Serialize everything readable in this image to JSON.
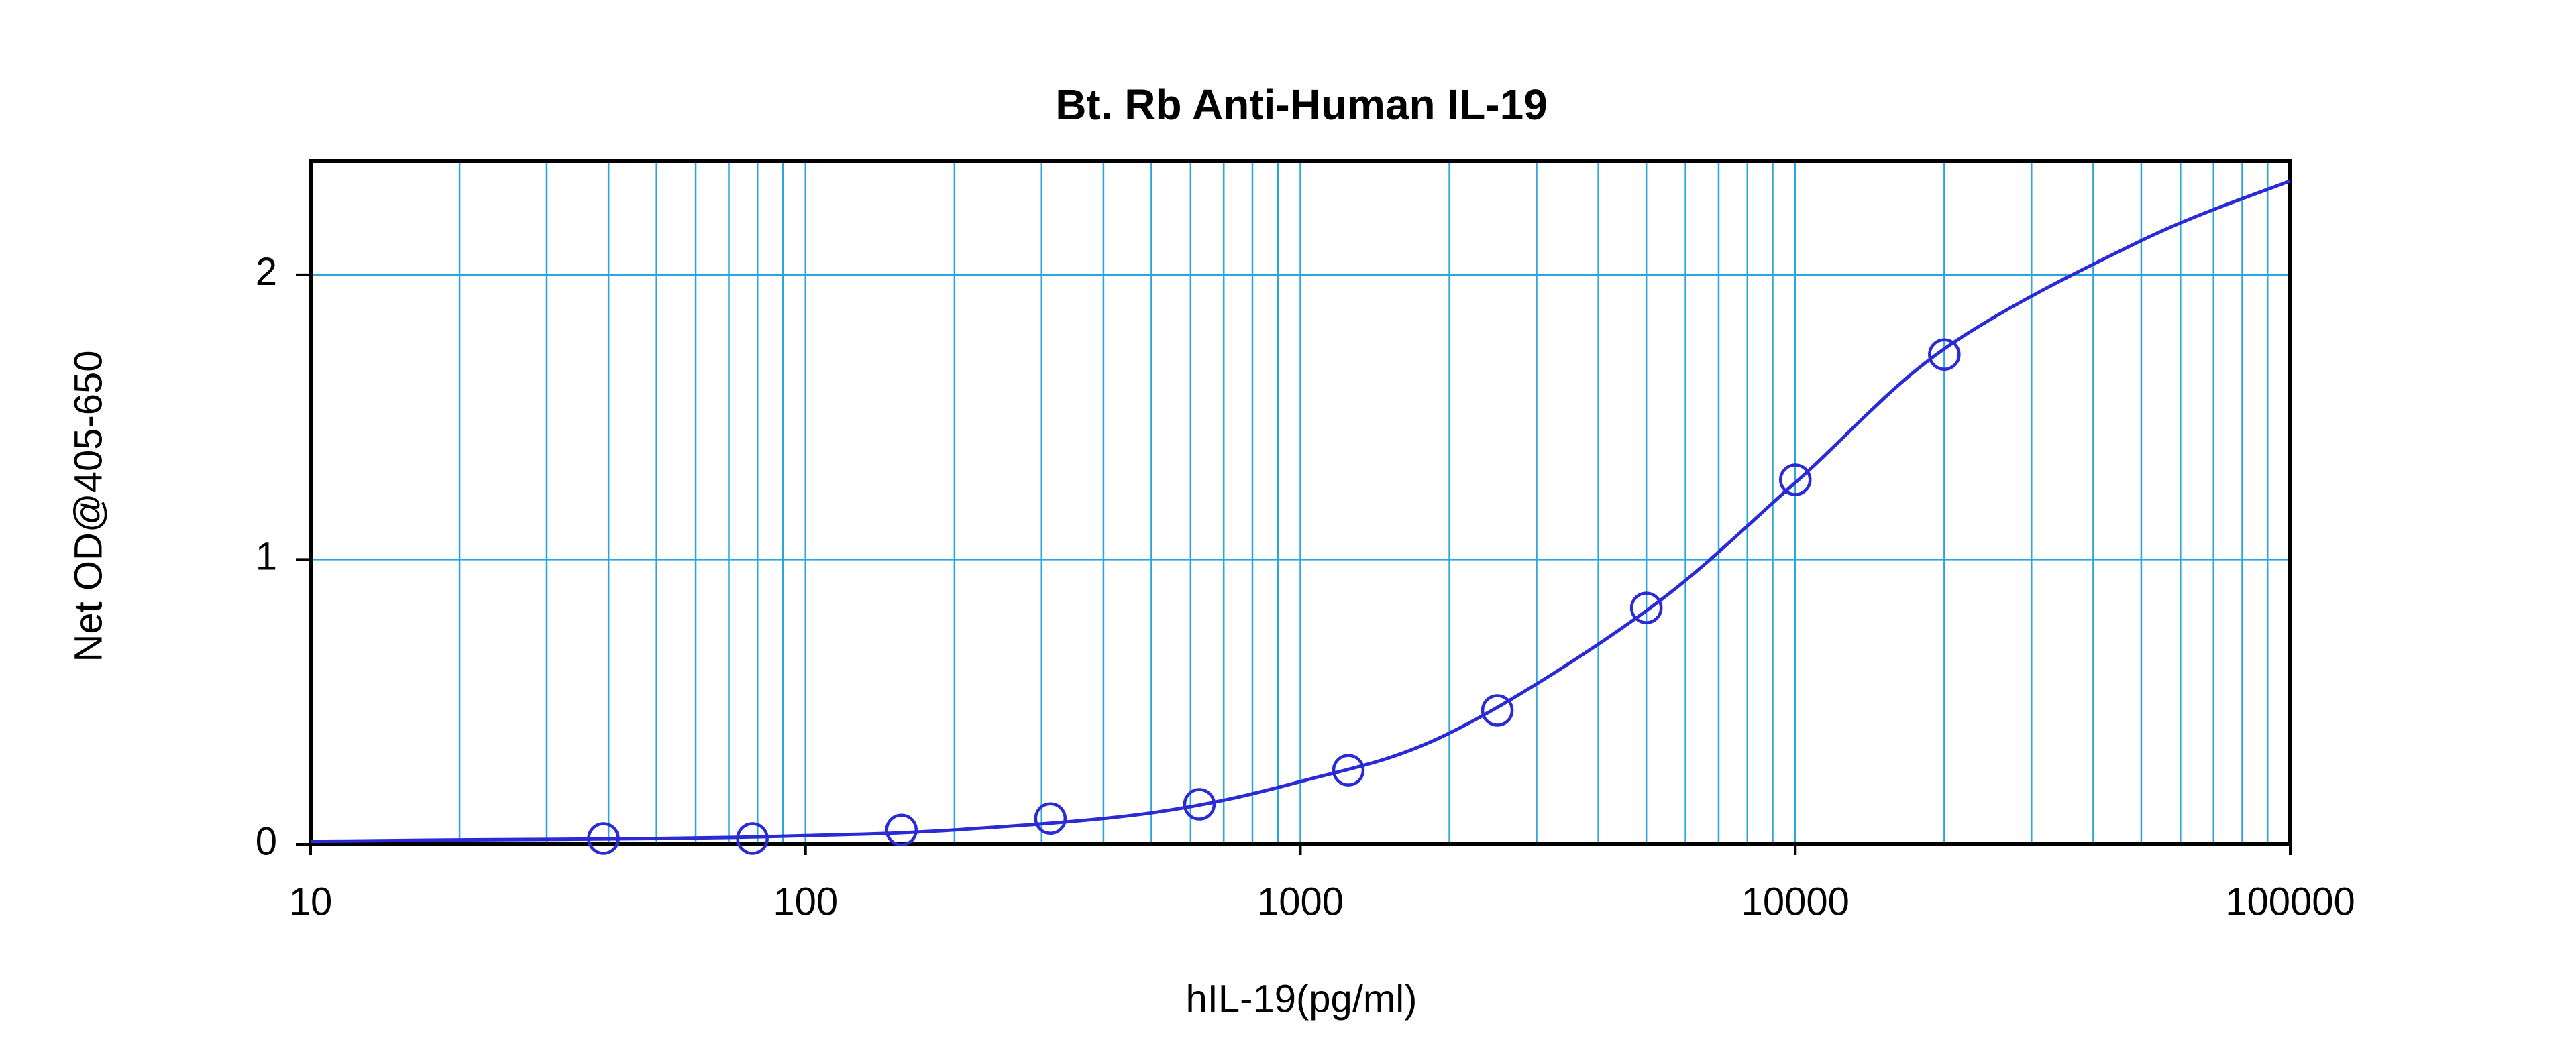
{
  "chart_data": {
    "type": "scatter",
    "title": "Bt. Rb Anti-Human IL-19",
    "xlabel": "hIL-19(pg/ml)",
    "ylabel": "Net OD@405-650",
    "xscale": "log",
    "grid": true,
    "color": "#2a2ad6",
    "grid_color": "#2aa6de",
    "x": [
      39.06,
      78.125,
      156.25,
      312.5,
      625,
      1250,
      2500,
      5000,
      10000,
      20000
    ],
    "values": [
      0.02,
      0.02,
      0.05,
      0.09,
      0.14,
      0.26,
      0.47,
      0.83,
      1.28,
      1.72
    ],
    "curve": {
      "x": [
        10,
        20,
        50,
        100,
        200,
        500,
        1000,
        2000,
        5000,
        10000,
        20000,
        50000,
        100000
      ],
      "values": [
        0.01,
        0.015,
        0.02,
        0.03,
        0.05,
        0.11,
        0.22,
        0.39,
        0.82,
        1.27,
        1.74,
        2.12,
        2.33
      ]
    },
    "xlim": [
      10,
      100000
    ],
    "ylim": [
      0,
      2.4
    ],
    "xticks": [
      10,
      100,
      1000,
      10000,
      100000
    ],
    "xminorticks": [
      20,
      30,
      40,
      50,
      60,
      70,
      80,
      90,
      200,
      300,
      400,
      500,
      600,
      700,
      800,
      900,
      2000,
      3000,
      4000,
      5000,
      6000,
      7000,
      8000,
      9000,
      20000,
      30000,
      40000,
      50000,
      60000,
      70000,
      80000,
      90000
    ],
    "yticks": [
      0,
      1,
      2
    ]
  }
}
